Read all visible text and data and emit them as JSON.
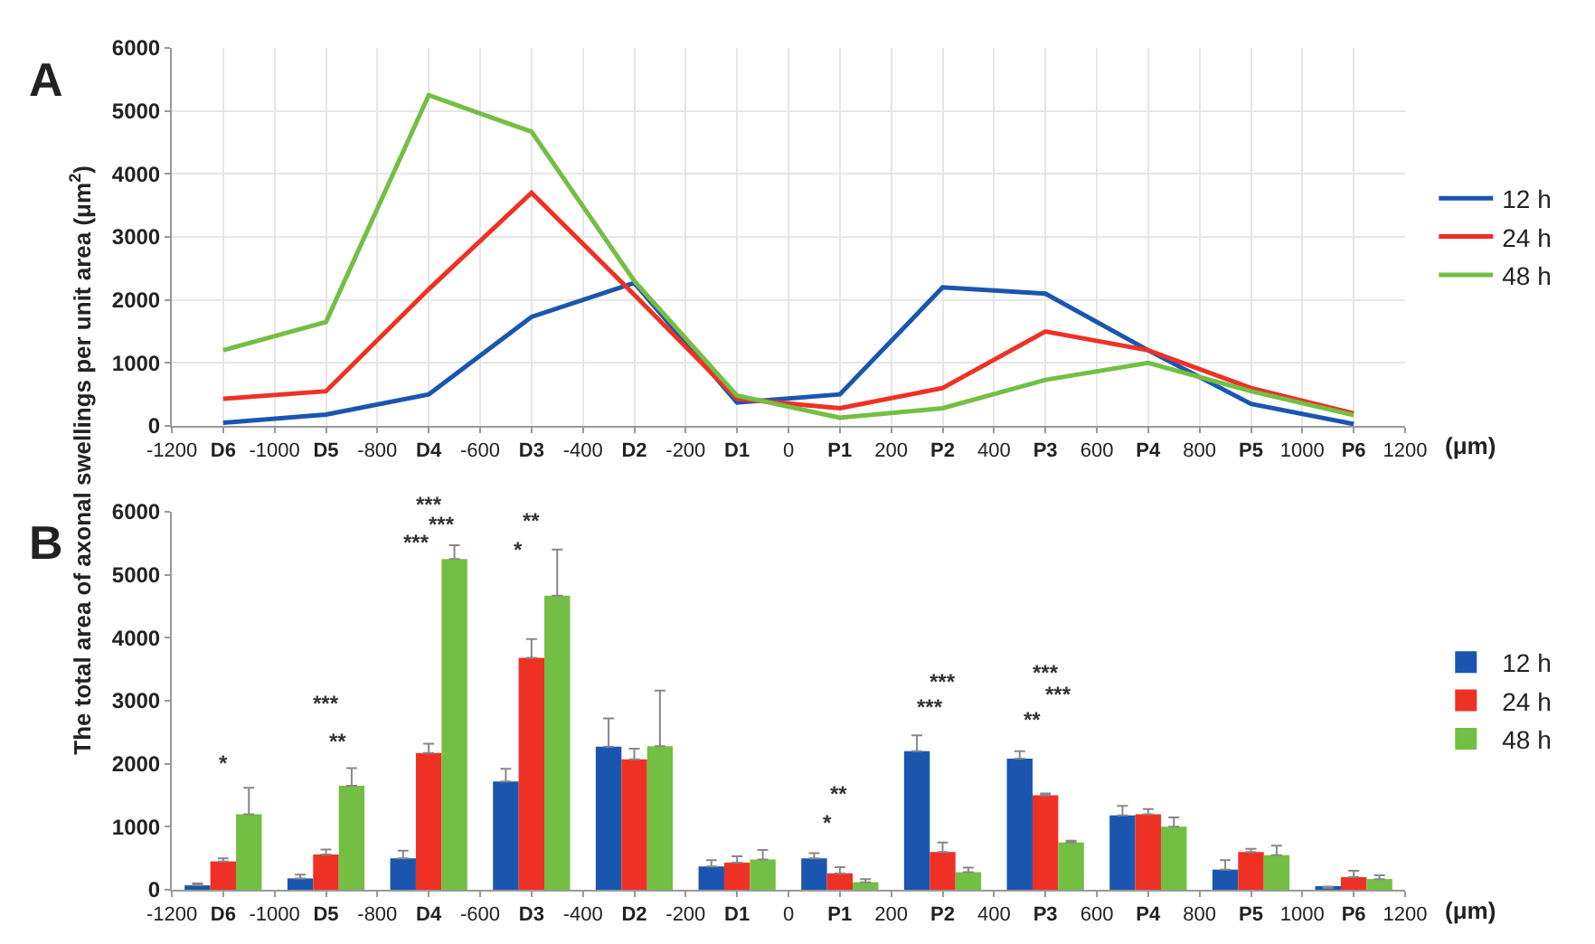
{
  "chart_data": [
    {
      "type": "line",
      "title": "A",
      "ylabel": "The total area of axonal swellings per unit area (μm$^{2}$)",
      "xlabel": "(μm)",
      "x": [
        -1100,
        -900,
        -700,
        -500,
        -300,
        -100,
        100,
        300,
        500,
        700,
        900,
        1100
      ],
      "series": [
        {
          "name": "12 h",
          "color": "#1a56b0",
          "values": [
            50,
            180,
            500,
            1730,
            2270,
            370,
            500,
            2200,
            2100,
            1200,
            350,
            30
          ]
        },
        {
          "name": "24 h",
          "color": "#ee3124",
          "values": [
            430,
            550,
            2170,
            3700,
            2080,
            430,
            280,
            600,
            1500,
            1200,
            600,
            200
          ]
        },
        {
          "name": "48 h",
          "color": "#72bf44",
          "values": [
            1200,
            1650,
            5250,
            4670,
            2300,
            480,
            130,
            280,
            730,
            1000,
            550,
            170
          ]
        }
      ],
      "xlim": [
        -1200,
        1200
      ],
      "xticks": [
        -1200,
        {
          "value": -1100,
          "label": "D6"
        },
        -1000,
        {
          "value": -900,
          "label": "D5"
        },
        -800,
        {
          "value": -700,
          "label": "D4"
        },
        -600,
        {
          "value": -500,
          "label": "D3"
        },
        -400,
        {
          "value": -300,
          "label": "D2"
        },
        -200,
        {
          "value": -100,
          "label": "D1"
        },
        0,
        {
          "value": 100,
          "label": "P1"
        },
        200,
        {
          "value": 300,
          "label": "P2"
        },
        400,
        {
          "value": 500,
          "label": "P3"
        },
        600,
        {
          "value": 700,
          "label": "P4"
        },
        800,
        {
          "value": 900,
          "label": "P5"
        },
        1000,
        {
          "value": 1100,
          "label": "P6"
        },
        1200
      ],
      "ylim": [
        0,
        6000
      ],
      "yticks": [
        0,
        1000,
        2000,
        3000,
        4000,
        5000,
        6000
      ],
      "grid": true,
      "legend": "right",
      "marker": "none",
      "line_style": "solid"
    },
    {
      "type": "bar",
      "title": "B",
      "xlabel": "(μm)",
      "x": [
        -1100,
        -900,
        -700,
        -500,
        -300,
        -100,
        100,
        300,
        500,
        700,
        900,
        1100
      ],
      "series": [
        {
          "name": "12 h",
          "color": "#1a56b0",
          "values": [
            70,
            180,
            500,
            1720,
            2270,
            370,
            500,
            2200,
            2080,
            1180,
            320,
            30
          ],
          "errors": [
            [
              70,
              100
            ],
            [
              180,
              240
            ],
            [
              500,
              620
            ],
            [
              1720,
              1920
            ],
            [
              2270,
              2720
            ],
            [
              370,
              470
            ],
            [
              500,
              580
            ],
            [
              2200,
              2450
            ],
            [
              2080,
              2200
            ],
            [
              1180,
              1330
            ],
            [
              320,
              470
            ],
            [
              30,
              50
            ]
          ]
        },
        {
          "name": "24 h",
          "color": "#ee3124",
          "values": [
            450,
            560,
            2170,
            3680,
            2070,
            430,
            260,
            600,
            1500,
            1200,
            600,
            200
          ],
          "errors": [
            [
              450,
              500
            ],
            [
              560,
              640
            ],
            [
              2170,
              2320
            ],
            [
              3680,
              3980
            ],
            [
              2070,
              2240
            ],
            [
              430,
              530
            ],
            [
              260,
              360
            ],
            [
              600,
              750
            ],
            [
              1500,
              1530
            ],
            [
              1200,
              1280
            ],
            [
              600,
              650
            ],
            [
              200,
              300
            ]
          ]
        },
        {
          "name": "48 h",
          "color": "#72bf44",
          "values": [
            1200,
            1650,
            5250,
            4670,
            2280,
            480,
            120,
            280,
            750,
            1000,
            550,
            170
          ],
          "errors": [
            [
              1200,
              1620
            ],
            [
              1650,
              1930
            ],
            [
              5250,
              5470
            ],
            [
              4670,
              5400
            ],
            [
              2280,
              3160
            ],
            [
              480,
              630
            ],
            [
              120,
              170
            ],
            [
              280,
              350
            ],
            [
              750,
              780
            ],
            [
              1000,
              1150
            ],
            [
              550,
              700
            ],
            [
              170,
              230
            ]
          ]
        }
      ],
      "annotations": [
        "*",
        "***",
        "**",
        "***",
        "***",
        "***",
        "**",
        "*",
        "**",
        "*",
        "***",
        "***",
        "***",
        "***",
        "**"
      ],
      "xlim": [
        -1200,
        1200
      ],
      "xticks": [
        -1200,
        {
          "value": -1100,
          "label": "D6"
        },
        -1000,
        {
          "value": -900,
          "label": "D5"
        },
        -800,
        {
          "value": -700,
          "label": "D4"
        },
        -600,
        {
          "value": -500,
          "label": "D3"
        },
        -400,
        {
          "value": -300,
          "label": "D2"
        },
        -200,
        {
          "value": -100,
          "label": "D1"
        },
        0,
        {
          "value": 100,
          "label": "P1"
        },
        200,
        {
          "value": 300,
          "label": "P2"
        },
        400,
        {
          "value": 500,
          "label": "P3"
        },
        600,
        {
          "value": 700,
          "label": "P4"
        },
        800,
        {
          "value": 900,
          "label": "P5"
        },
        1000,
        {
          "value": 1100,
          "label": "P6"
        },
        1200
      ],
      "ylim": [
        0,
        6000
      ],
      "yticks": [
        0,
        1000,
        2000,
        3000,
        4000,
        5000,
        6000
      ],
      "grid": false,
      "legend": "right"
    }
  ]
}
